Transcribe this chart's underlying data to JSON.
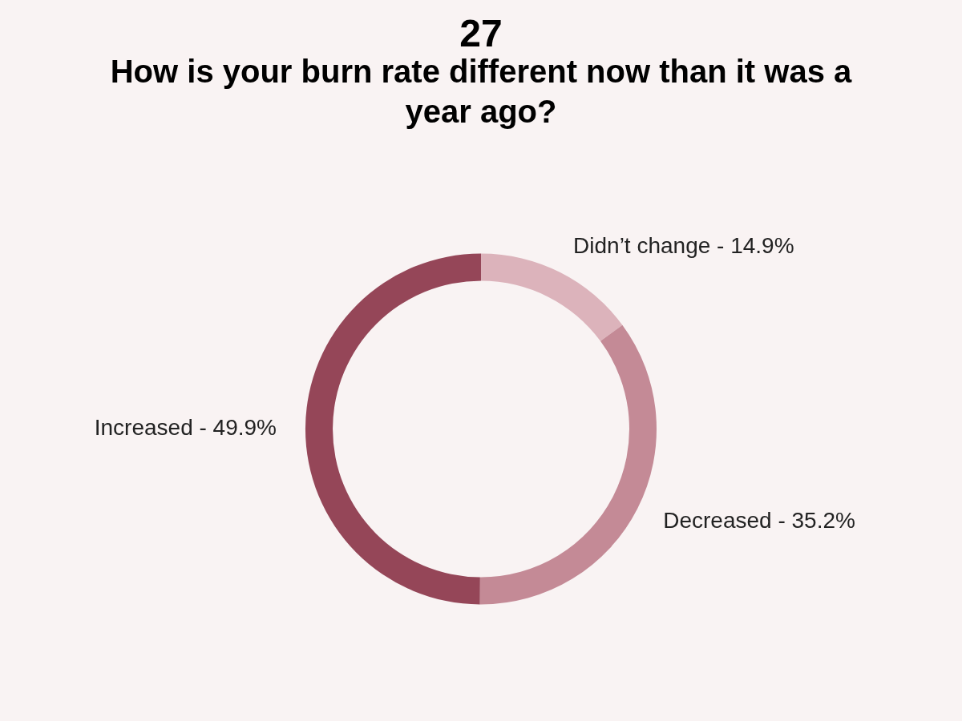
{
  "chart_data": {
    "type": "donut",
    "title": "27",
    "subtitle": "How is your burn rate different now than it was a year ago?",
    "categories": [
      "Didn’t change",
      "Decreased",
      "Increased"
    ],
    "values": [
      14.9,
      35.2,
      49.9
    ],
    "colors": [
      "#dcb3bb",
      "#c48a96",
      "#954658"
    ],
    "value_labels": [
      "14.9%",
      "35.2%",
      "49.9%"
    ]
  }
}
